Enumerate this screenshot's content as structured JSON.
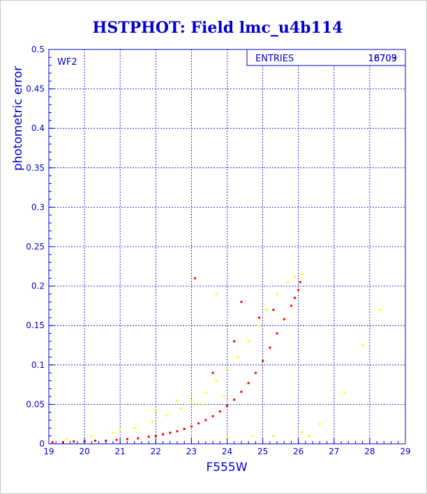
{
  "chart_data": {
    "type": "scatter",
    "title": "HSTPHOT: Field lmc_u4b114",
    "xlabel": "F555W",
    "ylabel": "photometric error",
    "xlim": [
      19,
      29
    ],
    "ylim": [
      0,
      0.5
    ],
    "x_ticks": [
      "19",
      "20",
      "21",
      "22",
      "23",
      "24",
      "25",
      "26",
      "27",
      "28",
      "29"
    ],
    "y_ticks": [
      "0",
      "0.05",
      "0.1",
      "0.15",
      "0.2",
      "0.25",
      "0.3",
      "0.35",
      "0.4",
      "0.45",
      "0.5"
    ],
    "grid": true,
    "panel_label": "WF2",
    "stats_box": {
      "label": "ENTRIES",
      "value_1": "16709",
      "value_2": "18703"
    },
    "series": [
      {
        "color": "#ff0000",
        "points": [
          [
            19.1,
            0.002
          ],
          [
            19.4,
            0.002
          ],
          [
            19.7,
            0.003
          ],
          [
            20.0,
            0.003
          ],
          [
            20.3,
            0.004
          ],
          [
            20.6,
            0.004
          ],
          [
            20.9,
            0.005
          ],
          [
            21.2,
            0.006
          ],
          [
            21.5,
            0.007
          ],
          [
            21.8,
            0.009
          ],
          [
            22.0,
            0.01
          ],
          [
            22.2,
            0.012
          ],
          [
            22.4,
            0.014
          ],
          [
            22.6,
            0.016
          ],
          [
            22.8,
            0.019
          ],
          [
            23.0,
            0.022
          ],
          [
            23.2,
            0.026
          ],
          [
            23.4,
            0.03
          ],
          [
            23.6,
            0.035
          ],
          [
            23.8,
            0.041
          ],
          [
            24.0,
            0.048
          ],
          [
            24.2,
            0.056
          ],
          [
            24.4,
            0.066
          ],
          [
            24.6,
            0.077
          ],
          [
            24.8,
            0.09
          ],
          [
            25.0,
            0.105
          ],
          [
            25.2,
            0.122
          ],
          [
            25.4,
            0.14
          ],
          [
            25.6,
            0.158
          ],
          [
            25.8,
            0.175
          ],
          [
            25.9,
            0.185
          ],
          [
            26.0,
            0.195
          ],
          [
            26.05,
            0.205
          ],
          [
            23.1,
            0.21
          ],
          [
            24.4,
            0.18
          ],
          [
            24.9,
            0.16
          ],
          [
            25.3,
            0.17
          ],
          [
            24.2,
            0.13
          ],
          [
            23.6,
            0.09
          ]
        ]
      },
      {
        "color": "#ffff00",
        "points": [
          [
            19.5,
            0.006
          ],
          [
            20.2,
            0.01
          ],
          [
            20.8,
            0.014
          ],
          [
            21.4,
            0.02
          ],
          [
            21.9,
            0.028
          ],
          [
            22.3,
            0.036
          ],
          [
            22.7,
            0.045
          ],
          [
            23.0,
            0.055
          ],
          [
            23.4,
            0.065
          ],
          [
            23.7,
            0.08
          ],
          [
            24.0,
            0.095
          ],
          [
            24.3,
            0.11
          ],
          [
            24.6,
            0.13
          ],
          [
            24.9,
            0.15
          ],
          [
            25.1,
            0.17
          ],
          [
            25.4,
            0.19
          ],
          [
            25.7,
            0.205
          ],
          [
            25.9,
            0.212
          ],
          [
            26.1,
            0.215
          ],
          [
            22.0,
            0.042
          ],
          [
            22.6,
            0.055
          ],
          [
            23.3,
            0.05
          ],
          [
            23.9,
            0.06
          ],
          [
            21.0,
            0.018
          ],
          [
            24.7,
            0.01
          ],
          [
            25.3,
            0.01
          ],
          [
            26.1,
            0.015
          ],
          [
            26.6,
            0.025
          ],
          [
            27.3,
            0.065
          ],
          [
            27.8,
            0.125
          ],
          [
            28.3,
            0.17
          ],
          [
            23.7,
            0.19
          ],
          [
            26.3,
            0.01
          ],
          [
            24.0,
            0.008
          ]
        ]
      }
    ]
  }
}
